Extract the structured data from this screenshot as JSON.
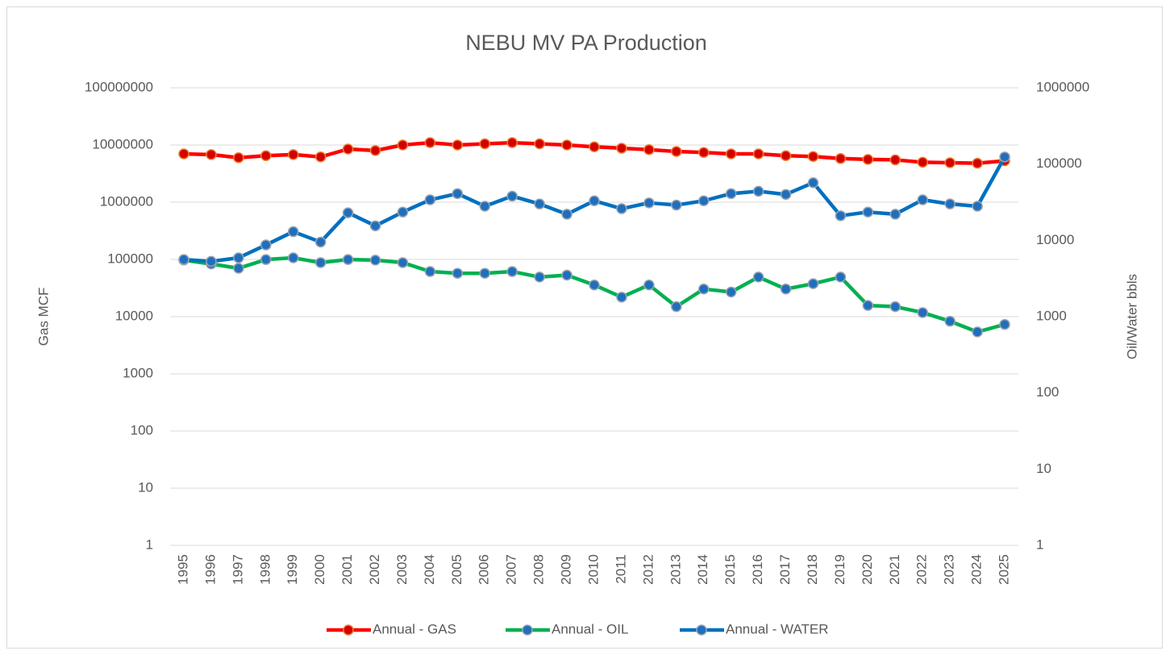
{
  "chart_data": {
    "type": "line",
    "title": "NEBU MV PA Production",
    "ylabel": "Gas MCF",
    "y2label": "Oil/Water bbls",
    "log_scale": true,
    "grid": true,
    "legend": "bottom",
    "categories": [
      "1995",
      "1996",
      "1997",
      "1998",
      "1999",
      "2000",
      "2001",
      "2002",
      "2003",
      "2004",
      "2005",
      "2006",
      "2007",
      "2008",
      "2009",
      "2010",
      "2011",
      "2012",
      "2013",
      "2014",
      "2015",
      "2016",
      "2017",
      "2018",
      "2019",
      "2020",
      "2021",
      "2022",
      "2023",
      "2024",
      "2025"
    ],
    "ylim": [
      1,
      100000000
    ],
    "yticks": [
      1,
      10,
      100,
      1000,
      10000,
      100000,
      1000000,
      10000000,
      100000000
    ],
    "y2lim": [
      1,
      1000000
    ],
    "y2ticks": [
      1,
      10,
      100,
      1000,
      10000,
      100000,
      1000000
    ],
    "series": [
      {
        "name": "Annual - GAS",
        "color": "#ff0000",
        "marker_color": "#d40000",
        "marker_edge": "#ed7d31",
        "axis": "y",
        "values": [
          7000000,
          6800000,
          6000000,
          6500000,
          6800000,
          6200000,
          8500000,
          8000000,
          10000000,
          11000000,
          10000000,
          10500000,
          11000000,
          10500000,
          10000000,
          9300000,
          8800000,
          8300000,
          7700000,
          7400000,
          7000000,
          7000000,
          6500000,
          6300000,
          5800000,
          5600000,
          5500000,
          5000000,
          4900000,
          4800000,
          5300000
        ]
      },
      {
        "name": "Annual - OIL",
        "color": "#00b050",
        "marker_color": "#1f6fbf",
        "marker_edge": "#9aa3ad",
        "axis": "y2",
        "values": [
          5500,
          4900,
          4300,
          5600,
          5900,
          5100,
          5600,
          5500,
          5100,
          3900,
          3700,
          3700,
          3900,
          3300,
          3500,
          2600,
          1800,
          2600,
          1350,
          2300,
          2100,
          3300,
          2300,
          2700,
          3300,
          1400,
          1350,
          1130,
          870,
          630,
          790
        ]
      },
      {
        "name": "Annual - WATER",
        "color": "#0070c0",
        "marker_color": "#1f6fbf",
        "marker_edge": "#9aa3ad",
        "axis": "y2",
        "values": [
          5600,
          5300,
          5900,
          8700,
          13000,
          9500,
          23000,
          15500,
          23500,
          34000,
          41000,
          28000,
          38000,
          30000,
          22000,
          33000,
          26000,
          31000,
          29000,
          33000,
          41000,
          44000,
          40000,
          57000,
          21000,
          23500,
          22000,
          34000,
          30000,
          28000,
          124000
        ]
      }
    ]
  }
}
